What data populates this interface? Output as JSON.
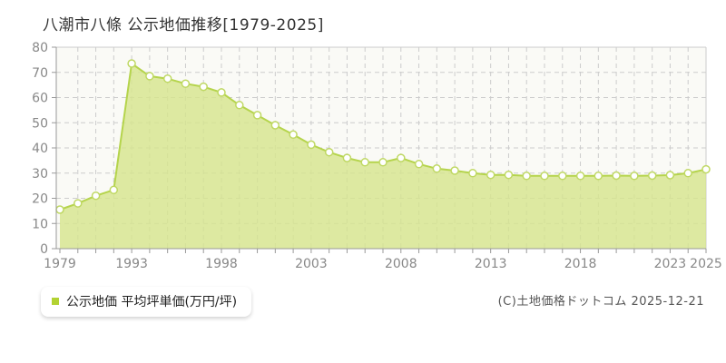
{
  "page": {
    "title": "八潮市八條 公示地価推移[1979-2025]",
    "copyright": "(C)土地価格ドットコム 2025-12-21"
  },
  "legend": {
    "label": "公示地価 平均坪単価(万円/坪)",
    "marker_color": "#b2d232"
  },
  "chart_data": {
    "type": "area",
    "title": "八潮市八條 公示地価推移[1979-2025]",
    "ylabel": "万円/坪",
    "ylim": [
      0,
      80
    ],
    "y_ticks": [
      0,
      10,
      20,
      30,
      40,
      50,
      60,
      70,
      80
    ],
    "x_tick_labels": [
      "1979",
      "1993",
      "1998",
      "2003",
      "2008",
      "2013",
      "2018",
      "2023",
      "2025"
    ],
    "x_tick_indices": [
      0,
      4,
      9,
      14,
      19,
      24,
      29,
      34,
      36
    ],
    "grid": true,
    "legend_position": "bottom-left",
    "series": [
      {
        "name": "公示地価 平均坪単価(万円/坪)",
        "values": [
          15.5,
          18,
          21,
          23.3,
          73.5,
          68.5,
          67.5,
          65.5,
          64.3,
          62,
          57,
          53,
          49,
          45.3,
          41.3,
          38.3,
          36,
          34.3,
          34.3,
          36,
          33.6,
          31.8,
          31,
          30,
          29.3,
          29.3,
          28.9,
          28.9,
          28.9,
          28.9,
          28.9,
          29,
          28.9,
          29,
          29.2,
          30,
          31.5
        ]
      }
    ],
    "colors": {
      "fill": "#d6e58c",
      "fill_opacity": 0.8,
      "line": "#b5d44c",
      "marker_fill": "#ffffff",
      "marker_stroke": "#bfd863",
      "grid": "#cccccc",
      "axis": "#999999",
      "plot_bg": "#fafaf6",
      "tick_text": "#888888"
    }
  }
}
